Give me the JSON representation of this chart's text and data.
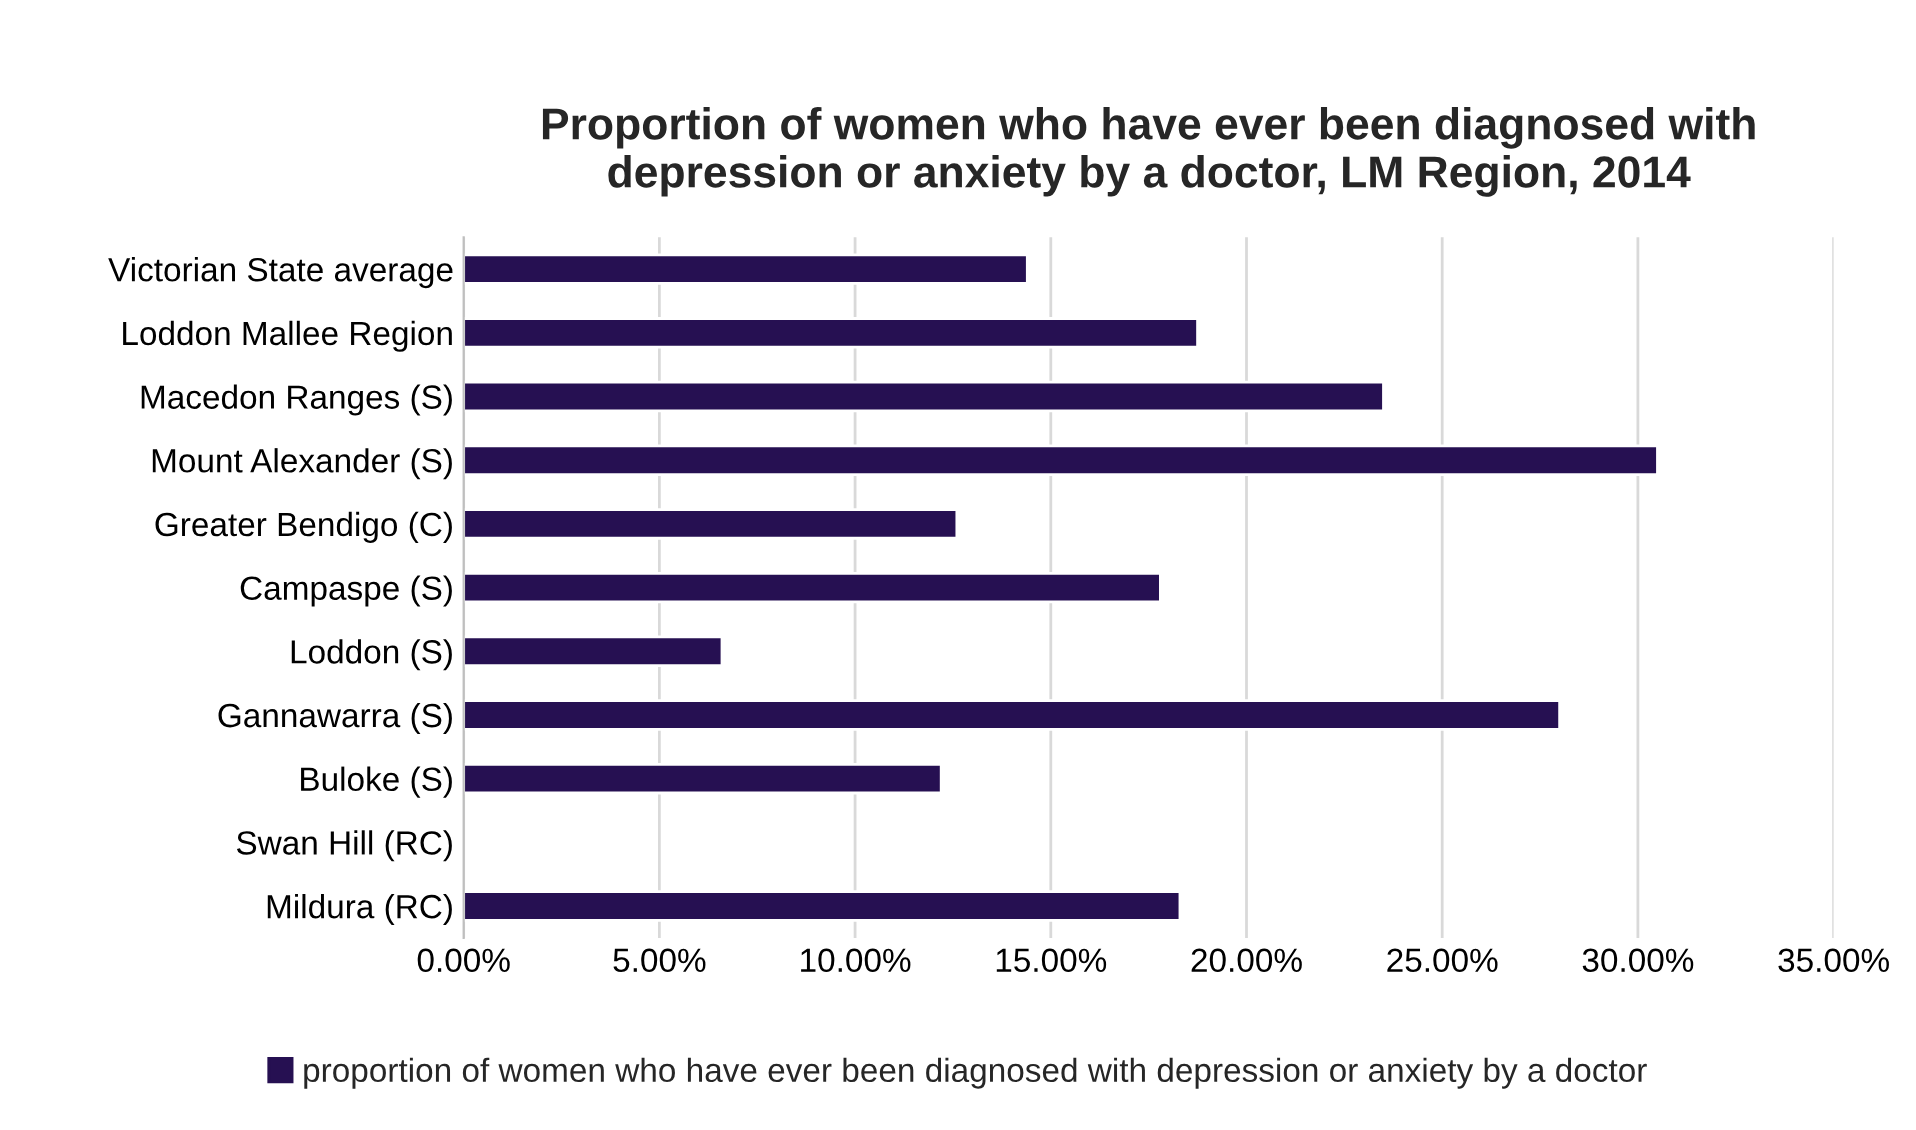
{
  "chart_data": {
    "type": "bar",
    "orientation": "horizontal",
    "title": "Proportion of women who have ever been diagnosed with\ndepression or anxiety by a doctor, LM Region, 2014",
    "categories": [
      "Victorian State average",
      "Loddon Mallee Region",
      "Macedon Ranges (S)",
      "Mount Alexander (S)",
      "Greater Bendigo (C)",
      "Campaspe (S)",
      "Loddon (S)",
      "Gannawarra (S)",
      "Buloke (S)",
      "Swan Hill (RC)",
      "Mildura (RC)"
    ],
    "series": [
      {
        "name": "proportion of women who have ever been diagnosed with depression or anxiety by a doctor",
        "color": "#261052",
        "values": [
          14.4,
          18.75,
          23.5,
          30.5,
          12.6,
          17.8,
          6.6,
          28.0,
          12.2,
          null,
          18.3
        ]
      }
    ],
    "xlim": [
      0,
      35
    ],
    "xticks": [
      {
        "value": 0,
        "label": "0.00%"
      },
      {
        "value": 5,
        "label": "5.00%"
      },
      {
        "value": 10,
        "label": "10.00%"
      },
      {
        "value": 15,
        "label": "15.00%"
      },
      {
        "value": 20,
        "label": "20.00%"
      },
      {
        "value": 25,
        "label": "25.00%"
      },
      {
        "value": 30,
        "label": "30.00%"
      },
      {
        "value": 35,
        "label": "35.00%"
      }
    ],
    "grid": "x",
    "legend": "bottom"
  }
}
